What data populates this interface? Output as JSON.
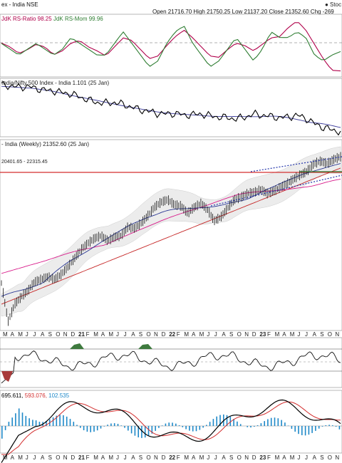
{
  "header": {
    "title": "ex - India NSE",
    "ohlc": "Open 21716.70  High 21750.25  Low 21137.20  Close 21352.60  Chg -269",
    "brand": "● Stoc"
  },
  "panels": {
    "rrg": {
      "label_prefix": "JdK RS-Ratio 98.25 ",
      "label_mom": "JdK RS-Mom 99.96",
      "ratio_color": "#b0004a",
      "mom_color": "#2e7d32"
    },
    "relative": {
      "label": "India/Nifty 500 Index - India 1.101 (25 Jan)"
    },
    "price": {
      "label": "- India (Weekly) 21352.60 (25 Jan)",
      "sublabel": "20401.65 - 22315.45"
    },
    "rsi": {},
    "macd": {
      "v1": "695.611,",
      "v2": "593.076,",
      "v3": "102.535",
      "c1": "#000000",
      "c2": "#d32f2f",
      "c3": "#1e88c8"
    }
  },
  "x_axis": {
    "labels": [
      "M",
      "A",
      "M",
      "J",
      "J",
      "A",
      "S",
      "O",
      "N",
      "D",
      "21",
      "F",
      "M",
      "A",
      "M",
      "J",
      "J",
      "A",
      "S",
      "O",
      "N",
      "D",
      "22",
      "F",
      "M",
      "A",
      "M",
      "J",
      "J",
      "A",
      "S",
      "O",
      "N",
      "D",
      "23",
      "F",
      "M",
      "A",
      "M",
      "J",
      "J",
      "A",
      "S",
      "O",
      "N"
    ]
  },
  "chart_data": [
    {
      "type": "line",
      "title": "JdK RS-Ratio 98.25 JdK RS-Mom 99.96",
      "series": [
        {
          "name": "JdK RS-Ratio",
          "values": [
            100.4,
            100.1,
            99.6,
            99.9,
            100.3,
            100.1,
            99.5,
            99.8,
            100.4,
            100.6,
            100.1,
            99.8,
            99.4,
            100.1,
            100.8,
            100.6,
            99.9,
            99.2,
            99.4,
            100.2,
            100.9,
            101.4,
            100.8,
            100.1,
            99.4,
            99.3,
            99.9,
            100.4,
            100.2,
            99.8,
            100.3,
            100.8,
            100.9,
            101.6,
            102.1,
            101.4,
            100.3,
            99.2,
            98.3,
            98.25
          ]
        },
        {
          "name": "JdK RS-Mom",
          "values": [
            100.1,
            100.0,
            99.9,
            100.0,
            100.1,
            100.0,
            99.9,
            100.0,
            100.2,
            100.1,
            100.0,
            99.9,
            99.9,
            100.1,
            100.3,
            100.1,
            99.9,
            99.7,
            99.8,
            100.1,
            100.3,
            100.4,
            100.1,
            99.9,
            99.7,
            99.8,
            100.0,
            100.2,
            100.0,
            99.8,
            100.0,
            100.3,
            100.2,
            100.2,
            100.3,
            100.2,
            99.9,
            99.8,
            99.9,
            99.96
          ]
        }
      ]
    },
    {
      "type": "line",
      "title": "India/Nifty 500 Index - India 1.101 (25 Jan)",
      "series": [
        {
          "name": "India/Nifty 500 Index",
          "values": [
            1.178,
            1.176,
            1.174,
            1.175,
            1.172,
            1.169,
            1.168,
            1.165,
            1.163,
            1.158,
            1.153,
            1.149,
            1.148,
            1.149,
            1.146,
            1.141,
            1.137,
            1.134,
            1.131,
            1.13,
            1.131,
            1.128,
            1.129,
            1.13,
            1.127,
            1.125,
            1.124,
            1.122,
            1.125,
            1.13,
            1.128,
            1.126,
            1.124,
            1.125,
            1.128,
            1.123,
            1.114,
            1.108,
            1.104,
            1.101
          ]
        }
      ]
    },
    {
      "type": "line",
      "title": "India (Weekly) 21352.60 (25 Jan)",
      "ylim": [
        7500,
        22500
      ],
      "series": [
        {
          "name": "India (Weekly)",
          "values": [
            11200,
            8100,
            9500,
            10100,
            10600,
            11300,
            11500,
            11700,
            11500,
            11900,
            12500,
            13200,
            13900,
            14400,
            14800,
            15000,
            14600,
            14900,
            15000,
            15700,
            15600,
            16000,
            16600,
            17300,
            17700,
            17900,
            17500,
            17400,
            16800,
            17300,
            17600,
            17100,
            16200,
            16500,
            17200,
            17900,
            18100,
            18400,
            18500,
            18700,
            18400,
            18600,
            18900,
            19200,
            19600,
            19900,
            20200,
            20800,
            21000,
            20800,
            21150,
            21352.6
          ]
        }
      ]
    }
  ]
}
